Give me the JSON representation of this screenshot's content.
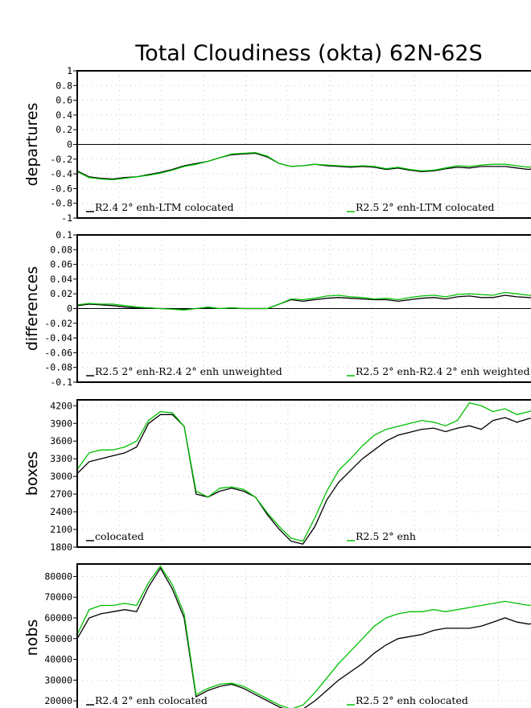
{
  "chart_data": [
    {
      "type": "line",
      "title": "Total Cloudiness (okta) 62N-62S",
      "ylabel": "departures",
      "ylim": [
        -1,
        1
      ],
      "yticks": [
        "1",
        "0.8",
        "0.6",
        "0.4",
        "0.2",
        "0",
        "-0.2",
        "-0.4",
        "-0.6",
        "-0.8",
        "-1"
      ],
      "zero_line": true,
      "legend_placement": "bottom",
      "series": [
        {
          "name": "R2.4 2° enh-LTM colocated",
          "color": "#000000",
          "values": [
            -0.36,
            -0.44,
            -0.46,
            -0.47,
            -0.45,
            -0.44,
            -0.41,
            -0.38,
            -0.34,
            -0.29,
            -0.26,
            -0.23,
            -0.18,
            -0.14,
            -0.13,
            -0.12,
            -0.17,
            -0.26,
            -0.3,
            -0.29,
            -0.27,
            -0.29,
            -0.3,
            -0.31,
            -0.3,
            -0.31,
            -0.34,
            -0.32,
            -0.35,
            -0.37,
            -0.36,
            -0.33,
            -0.31,
            -0.32,
            -0.3,
            -0.3,
            -0.3,
            -0.32,
            -0.34,
            -0.3
          ]
        },
        {
          "name": "R2.5 2° enh-LTM colocated",
          "color": "#00c000",
          "values": [
            -0.37,
            -0.45,
            -0.47,
            -0.48,
            -0.46,
            -0.44,
            -0.42,
            -0.39,
            -0.35,
            -0.3,
            -0.27,
            -0.23,
            -0.18,
            -0.13,
            -0.12,
            -0.11,
            -0.16,
            -0.26,
            -0.3,
            -0.29,
            -0.27,
            -0.28,
            -0.29,
            -0.3,
            -0.29,
            -0.3,
            -0.33,
            -0.31,
            -0.34,
            -0.36,
            -0.35,
            -0.32,
            -0.29,
            -0.3,
            -0.28,
            -0.27,
            -0.27,
            -0.29,
            -0.31,
            -0.27
          ]
        }
      ]
    },
    {
      "type": "line",
      "ylabel": "differences",
      "ylim": [
        -0.1,
        0.1
      ],
      "yticks": [
        "0.1",
        "0.08",
        "0.06",
        "0.04",
        "0.02",
        "0",
        "-0.02",
        "-0.04",
        "-0.06",
        "-0.08",
        "-0.1"
      ],
      "zero_line": true,
      "legend_placement": "bottom",
      "series": [
        {
          "name": "R2.5 2° enh-R2.4 2° enh unweighted",
          "color": "#000000",
          "values": [
            0.004,
            0.006,
            0.005,
            0.004,
            0.002,
            0.001,
            0.001,
            0.0,
            0.0,
            -0.001,
            0.0,
            0.001,
            0.0,
            0.001,
            0.0,
            0.0,
            0.0,
            0.006,
            0.012,
            0.01,
            0.012,
            0.014,
            0.015,
            0.014,
            0.013,
            0.012,
            0.012,
            0.01,
            0.012,
            0.014,
            0.015,
            0.013,
            0.016,
            0.017,
            0.015,
            0.015,
            0.018,
            0.016,
            0.015,
            0.014
          ]
        },
        {
          "name": "R2.5 2° enh-R2.4 2° enh weighted",
          "color": "#00c000",
          "values": [
            0.005,
            0.007,
            0.006,
            0.006,
            0.004,
            0.002,
            0.001,
            0.0,
            -0.001,
            -0.002,
            0.0,
            0.002,
            0.0,
            0.001,
            0.0,
            0.0,
            0.0,
            0.006,
            0.013,
            0.012,
            0.014,
            0.017,
            0.018,
            0.016,
            0.015,
            0.013,
            0.014,
            0.012,
            0.015,
            0.017,
            0.018,
            0.016,
            0.019,
            0.02,
            0.019,
            0.018,
            0.022,
            0.02,
            0.018,
            0.017
          ]
        }
      ]
    },
    {
      "type": "line",
      "ylabel": "boxes",
      "ylim": [
        1800,
        4300
      ],
      "yticks": [
        "4200",
        "3900",
        "3600",
        "3300",
        "3000",
        "2700",
        "2400",
        "2100",
        "1800"
      ],
      "zero_line": false,
      "legend_placement": "bottom",
      "series": [
        {
          "name": "colocated",
          "color": "#000000",
          "values": [
            3050,
            3250,
            3300,
            3350,
            3400,
            3500,
            3900,
            4050,
            4050,
            3850,
            2700,
            2650,
            2750,
            2800,
            2750,
            2650,
            2350,
            2100,
            1900,
            1850,
            2150,
            2600,
            2900,
            3100,
            3300,
            3450,
            3600,
            3700,
            3750,
            3800,
            3820,
            3760,
            3820,
            3860,
            3800,
            3950,
            4000,
            3920,
            3980,
            4020
          ]
        },
        {
          "name": "R2.5 2° enh",
          "color": "#00c000",
          "values": [
            3120,
            3400,
            3450,
            3450,
            3500,
            3600,
            3950,
            4100,
            4080,
            3850,
            2750,
            2650,
            2800,
            2820,
            2780,
            2650,
            2380,
            2150,
            1950,
            1900,
            2300,
            2750,
            3100,
            3300,
            3520,
            3700,
            3800,
            3850,
            3900,
            3950,
            3920,
            3860,
            3950,
            4250,
            4200,
            4100,
            4150,
            4050,
            4100,
            4150
          ]
        }
      ]
    },
    {
      "type": "line",
      "ylabel": "nobs",
      "ylim": [
        15000,
        86000
      ],
      "yticks": [
        "80000",
        "70000",
        "60000",
        "50000",
        "40000",
        "30000",
        "20000"
      ],
      "zero_line": false,
      "legend_placement": "bottom",
      "series": [
        {
          "name": "R2.4 2° enh colocated",
          "color": "#000000",
          "values": [
            50000,
            60000,
            62000,
            63000,
            64000,
            63000,
            75000,
            84000,
            74000,
            60000,
            22000,
            25000,
            27000,
            28000,
            26000,
            23000,
            20000,
            17000,
            15000,
            16000,
            20000,
            25000,
            30000,
            34000,
            38000,
            43000,
            47000,
            50000,
            51000,
            52000,
            54000,
            55000,
            55000,
            55000,
            56000,
            58000,
            60000,
            58000,
            57000,
            58000
          ]
        },
        {
          "name": "R2.5 2° enh colocated",
          "color": "#00c000",
          "values": [
            52000,
            64000,
            66000,
            66000,
            67000,
            66000,
            77000,
            85000,
            76000,
            62000,
            23000,
            26000,
            28000,
            28500,
            27000,
            24000,
            21000,
            18000,
            16000,
            18000,
            24000,
            31000,
            38000,
            44000,
            50000,
            56000,
            60000,
            62000,
            63000,
            63000,
            64000,
            63000,
            64000,
            65000,
            66000,
            67000,
            68000,
            67000,
            66000,
            67000
          ]
        }
      ]
    }
  ]
}
